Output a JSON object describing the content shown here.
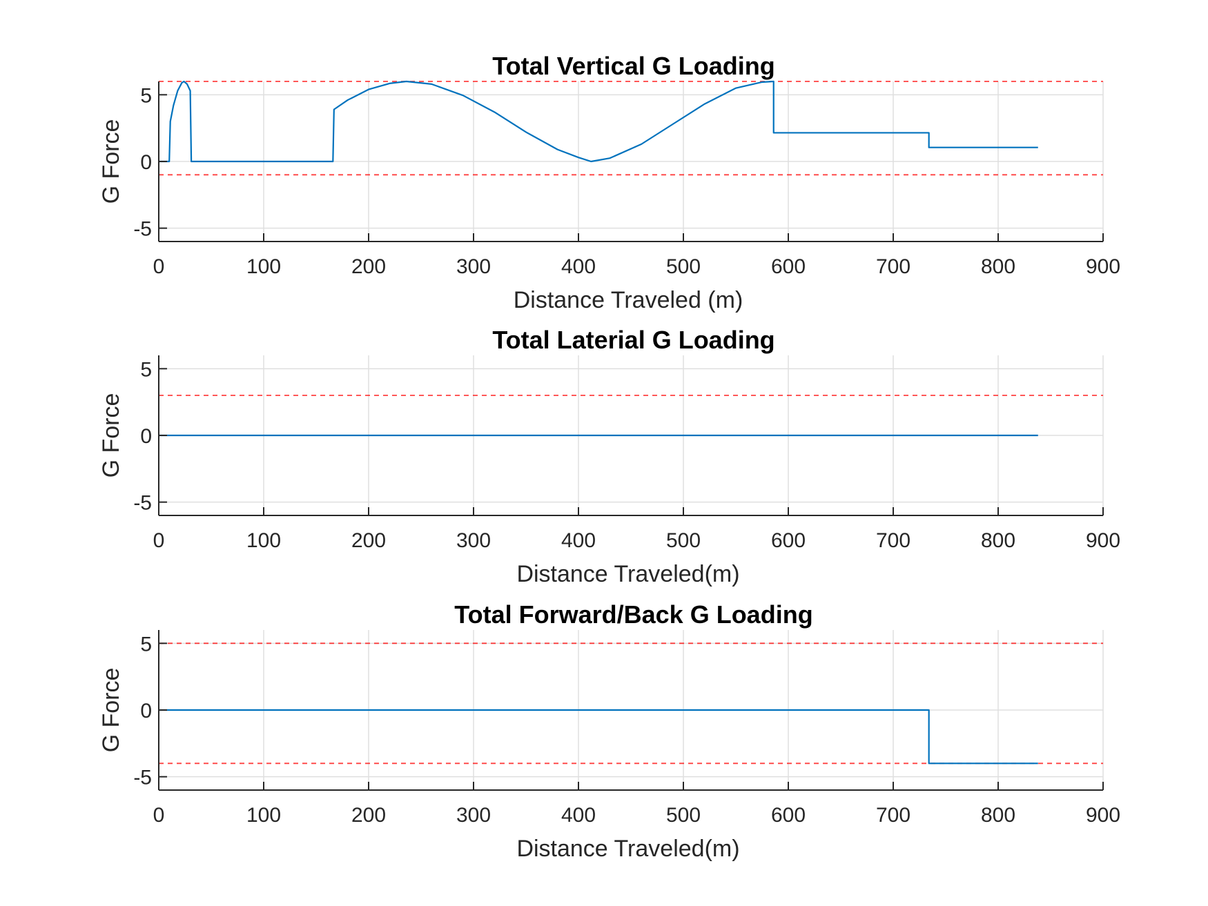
{
  "chart_data": [
    {
      "type": "line",
      "title": "Total Vertical G Loading",
      "xlabel": "Distance Traveled (m)",
      "ylabel": "G Force",
      "xlim": [
        0,
        900
      ],
      "ylim": [
        -6,
        6
      ],
      "xticks": [
        0,
        100,
        200,
        300,
        400,
        500,
        600,
        700,
        800,
        900
      ],
      "yticks": [
        -5,
        0,
        5
      ],
      "grid": true,
      "series": [
        {
          "color": "#0072BD",
          "x": [
            0,
            10,
            11,
            14,
            18,
            22,
            24,
            27,
            30,
            31,
            31,
            166,
            167,
            167,
            180,
            200,
            220,
            236,
            260,
            290,
            320,
            350,
            380,
            400,
            412,
            430,
            460,
            490,
            520,
            550,
            575,
            586,
            586,
            734,
            734,
            838
          ],
          "y": [
            0,
            0,
            3,
            4.2,
            5.3,
            5.9,
            6,
            5.8,
            5.3,
            0,
            0,
            0,
            3.9,
            3.9,
            4.6,
            5.4,
            5.85,
            6,
            5.8,
            4.95,
            3.7,
            2.2,
            0.9,
            0.3,
            0,
            0.25,
            1.3,
            2.8,
            4.3,
            5.5,
            5.95,
            6,
            2.15,
            2.15,
            1.05,
            1.05
          ]
        }
      ],
      "limits": [
        {
          "y": 6,
          "color": "#FF0000",
          "style": "dashed"
        },
        {
          "y": -1,
          "color": "#FF0000",
          "style": "dashed"
        }
      ]
    },
    {
      "type": "line",
      "title": "Total Laterial G Loading",
      "xlabel": "Distance Traveled(m)",
      "ylabel": "G Force",
      "xlim": [
        0,
        900
      ],
      "ylim": [
        -6,
        6
      ],
      "xticks": [
        0,
        100,
        200,
        300,
        400,
        500,
        600,
        700,
        800,
        900
      ],
      "yticks": [
        -5,
        0,
        5
      ],
      "grid": true,
      "series": [
        {
          "color": "#0072BD",
          "x": [
            0,
            838
          ],
          "y": [
            0,
            0
          ]
        }
      ],
      "limits": [
        {
          "y": 3,
          "color": "#FF0000",
          "style": "dashed"
        }
      ]
    },
    {
      "type": "line",
      "title": "Total Forward/Back G Loading",
      "xlabel": "Distance Traveled(m)",
      "ylabel": "G Force",
      "xlim": [
        0,
        900
      ],
      "ylim": [
        -6,
        6
      ],
      "xticks": [
        0,
        100,
        200,
        300,
        400,
        500,
        600,
        700,
        800,
        900
      ],
      "yticks": [
        -5,
        0,
        5
      ],
      "grid": true,
      "series": [
        {
          "color": "#0072BD",
          "x": [
            0,
            734,
            734,
            838
          ],
          "y": [
            0,
            0,
            -4,
            -4
          ]
        }
      ],
      "limits": [
        {
          "y": 5,
          "color": "#FF0000",
          "style": "dashed"
        },
        {
          "y": -4,
          "color": "#FF0000",
          "style": "dashed"
        }
      ]
    }
  ]
}
